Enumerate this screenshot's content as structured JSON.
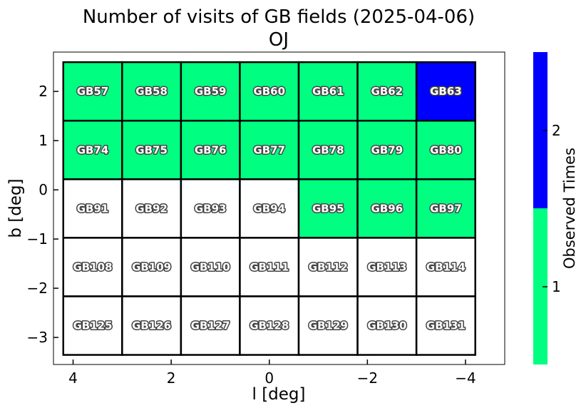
{
  "chart_data": {
    "type": "heatmap",
    "title": "Number of visits of GB fields (2025-04-06)",
    "subtitle": "OJ",
    "xlabel": "l [deg]",
    "ylabel": "b [deg]",
    "x_ticks": [
      4,
      2,
      0,
      -2,
      -4
    ],
    "x_tick_labels": [
      "4",
      "2",
      "0",
      "−2",
      "−4"
    ],
    "y_ticks": [
      2,
      1,
      0,
      -1,
      -2,
      -3
    ],
    "y_tick_labels": [
      "2",
      "1",
      "0",
      "−1",
      "−2",
      "−3"
    ],
    "xlim": [
      4.4,
      -4.8
    ],
    "ylim": [
      -3.55,
      2.8
    ],
    "x_inverted": true,
    "grid": false,
    "colorbar": {
      "label": "Observed Times",
      "ticks": [
        1,
        2
      ],
      "tick_labels": [
        "1",
        "2"
      ],
      "colors": [
        "#00ff80",
        "#0000ff"
      ]
    },
    "cell_width_deg": 1.2,
    "cell_height_deg": 1.19,
    "rows": [
      {
        "b": 2.0,
        "fields": [
          "GB57",
          "GB58",
          "GB59",
          "GB60",
          "GB61",
          "GB62",
          "GB63"
        ],
        "visits": [
          1,
          1,
          1,
          1,
          1,
          1,
          2
        ]
      },
      {
        "b": 0.81,
        "fields": [
          "GB74",
          "GB75",
          "GB76",
          "GB77",
          "GB78",
          "GB79",
          "GB80"
        ],
        "visits": [
          1,
          1,
          1,
          1,
          1,
          1,
          1
        ]
      },
      {
        "b": -0.38,
        "fields": [
          "GB91",
          "GB92",
          "GB93",
          "GB94",
          "GB95",
          "GB96",
          "GB97"
        ],
        "visits": [
          0,
          0,
          0,
          0,
          1,
          1,
          1
        ]
      },
      {
        "b": -1.57,
        "fields": [
          "GB108",
          "GB109",
          "GB110",
          "GB111",
          "GB112",
          "GB113",
          "GB114"
        ],
        "visits": [
          0,
          0,
          0,
          0,
          0,
          0,
          0
        ]
      },
      {
        "b": -2.76,
        "fields": [
          "GB125",
          "GB126",
          "GB127",
          "GB128",
          "GB129",
          "GB130",
          "GB131"
        ],
        "visits": [
          0,
          0,
          0,
          0,
          0,
          0,
          0
        ]
      }
    ],
    "column_l": [
      3.6,
      2.4,
      1.2,
      0.0,
      -1.2,
      -2.4,
      -3.6
    ],
    "unvisited_color": "#ffffff"
  }
}
